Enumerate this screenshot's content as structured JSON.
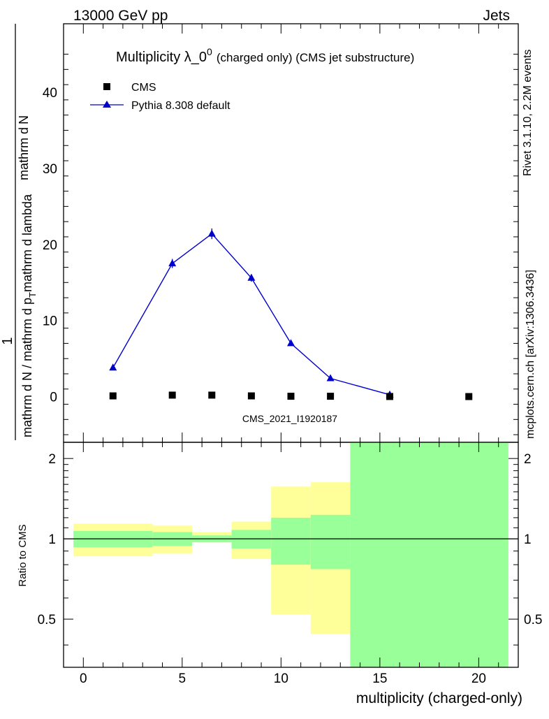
{
  "header": {
    "energy_label": "13000 GeV pp",
    "process_label": "Jets",
    "rivet_label": "Rivet 3.1.10,  2.2M events",
    "mcplots_label": "mcplots.cern.ch [arXiv:1306.3436]",
    "analysis_label": "CMS_2021_I1920187"
  },
  "colors": {
    "cms": "#000000",
    "pythia": "#0000cc",
    "band_green": "#99ff99",
    "band_yellow": "#ffff99",
    "watermark": "#999999"
  },
  "chart_data": [
    {
      "type": "scatter",
      "panel": "main",
      "title_main": "Multiplicity λ_0",
      "title_sup": "0",
      "title_sub": "(charged only) (CMS jet substructure)",
      "ylabel_num": "mathrm dN",
      "ylabel_den": "mathrm d p_T mathrm d lambda",
      "ylabel_prefix": "1",
      "ylabel_sub": "mathrm d N / mathrm d p_T mathrm d p_T mathrm d lambda",
      "ylabel_parts": {
        "one": "1",
        "den_left": "mathrm d N / mathrm d p",
        "den_mid": "mathrm d p",
        "den_right": "mathrm d lambda",
        "den_tail": "mathrm d p",
        "t": "T",
        "num": "mathrm d",
        "n": "N"
      },
      "xlim": [
        -1,
        22
      ],
      "ylim": [
        -6,
        49
      ],
      "yticks": [
        0,
        10,
        20,
        30,
        40
      ],
      "legend_position": "top-left",
      "series": [
        {
          "name": "CMS",
          "marker": "square",
          "x": [
            1.5,
            4.5,
            6.5,
            8.5,
            10.5,
            12.5,
            15.5,
            19.5
          ],
          "y": [
            0.1,
            0.2,
            0.2,
            0.1,
            0.05,
            0.05,
            0.02,
            0.01
          ]
        },
        {
          "name": "Pythia 8.308 default",
          "marker": "triangle",
          "x": [
            1.5,
            4.5,
            6.5,
            8.5,
            10.5,
            12.5,
            15.5
          ],
          "y": [
            3.8,
            17.5,
            21.4,
            15.6,
            7.0,
            2.4,
            0.25
          ],
          "yerr": [
            0.2,
            0.6,
            0.7,
            0.5,
            0.3,
            0.15,
            0.05
          ]
        }
      ]
    },
    {
      "type": "area",
      "panel": "ratio",
      "ylabel": "Ratio to CMS",
      "xlabel": "multiplicity (charged-only)",
      "xlim": [
        -1,
        22
      ],
      "ylim": [
        0.33,
        2.3
      ],
      "yticks": [
        0.5,
        1,
        2
      ],
      "ytick_labels": [
        "0.5",
        "1",
        "2"
      ],
      "xticks": [
        0,
        5,
        10,
        15,
        20
      ],
      "xtick_labels": [
        "0",
        "5",
        "10",
        "15",
        "20"
      ],
      "reference": 1,
      "bins": [
        {
          "x0": -0.5,
          "x1": 3.5,
          "green": [
            0.93,
            1.07
          ],
          "yellow": [
            0.86,
            1.14
          ]
        },
        {
          "x0": 3.5,
          "x1": 5.5,
          "green": [
            0.94,
            1.06
          ],
          "yellow": [
            0.88,
            1.12
          ]
        },
        {
          "x0": 5.5,
          "x1": 7.5,
          "green": [
            0.97,
            1.03
          ],
          "yellow": [
            0.97,
            1.06
          ]
        },
        {
          "x0": 7.5,
          "x1": 9.5,
          "green": [
            0.92,
            1.08
          ],
          "yellow": [
            0.84,
            1.16
          ]
        },
        {
          "x0": 9.5,
          "x1": 11.5,
          "green": [
            0.8,
            1.2
          ],
          "yellow": [
            0.52,
            1.57
          ]
        },
        {
          "x0": 11.5,
          "x1": 13.5,
          "green": [
            0.77,
            1.23
          ],
          "yellow": [
            0.44,
            1.63
          ]
        },
        {
          "x0": 13.5,
          "x1": 21.5,
          "green": [
            0.33,
            2.3
          ],
          "yellow": [
            0.33,
            2.3
          ]
        }
      ]
    }
  ]
}
